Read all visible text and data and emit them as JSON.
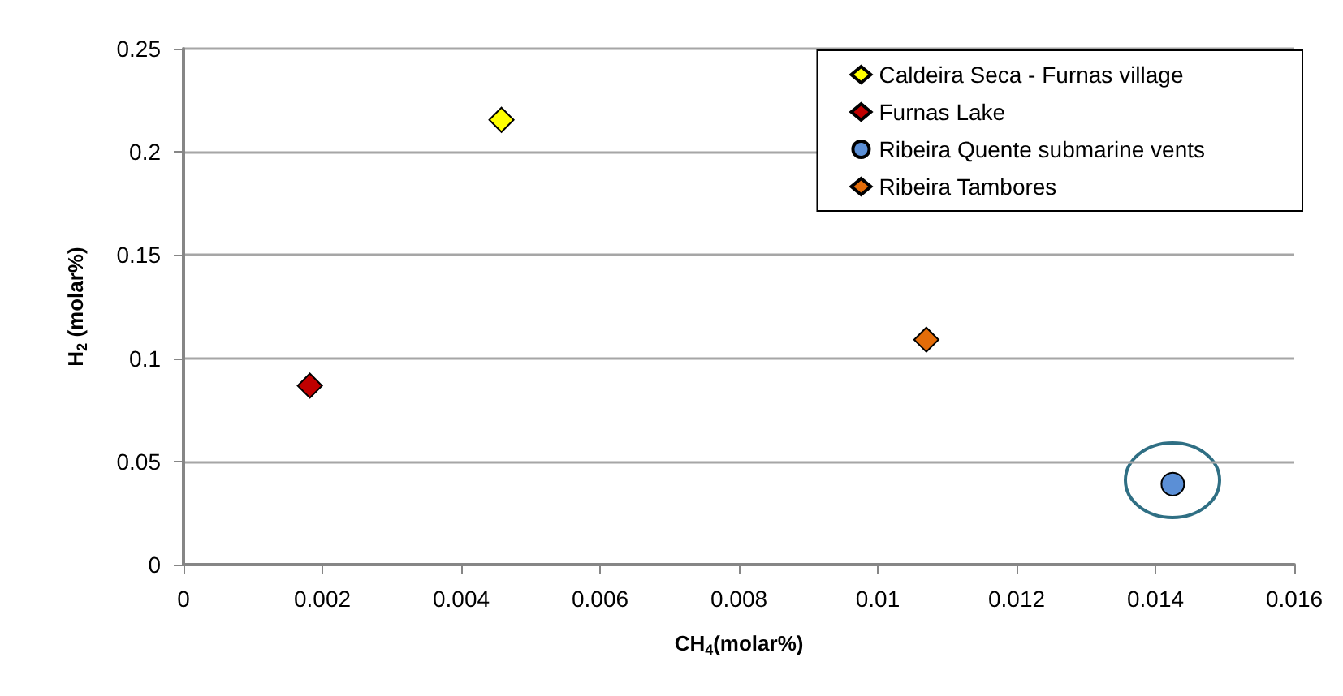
{
  "chart_data": {
    "type": "scatter",
    "xlabel": "CH$_{4}$(molar%)",
    "ylabel": "H$_{2}$ (molar%)",
    "xlim": [
      0,
      0.016
    ],
    "xticks": [
      0,
      0.002,
      0.004,
      0.006,
      0.008,
      0.01,
      0.012,
      0.014,
      0.016
    ],
    "ylim": [
      0,
      0.25
    ],
    "yticks": [
      0,
      0.05,
      0.1,
      0.15,
      0.2,
      0.25
    ],
    "grid": "y",
    "legend": "top right",
    "series": [
      {
        "name": "Caldeira Seca - Furnas village",
        "color": "#ffff00",
        "marker": "diamond",
        "x": [
          0.00458
        ],
        "values": [
          0.2155
        ]
      },
      {
        "name": "Furnas Lake",
        "color": "#c00000",
        "marker": "diamond",
        "x": [
          0.00182
        ],
        "values": [
          0.0867
        ]
      },
      {
        "name": "Ribeira Quente submarine vents",
        "color": "#5b8fd6",
        "marker": "circle",
        "x": [
          0.01425
        ],
        "values": [
          0.039
        ]
      },
      {
        "name": "Ribeira Tambores",
        "color": "#e36c09",
        "marker": "diamond",
        "x": [
          0.0107
        ],
        "values": [
          0.109
        ]
      }
    ]
  }
}
